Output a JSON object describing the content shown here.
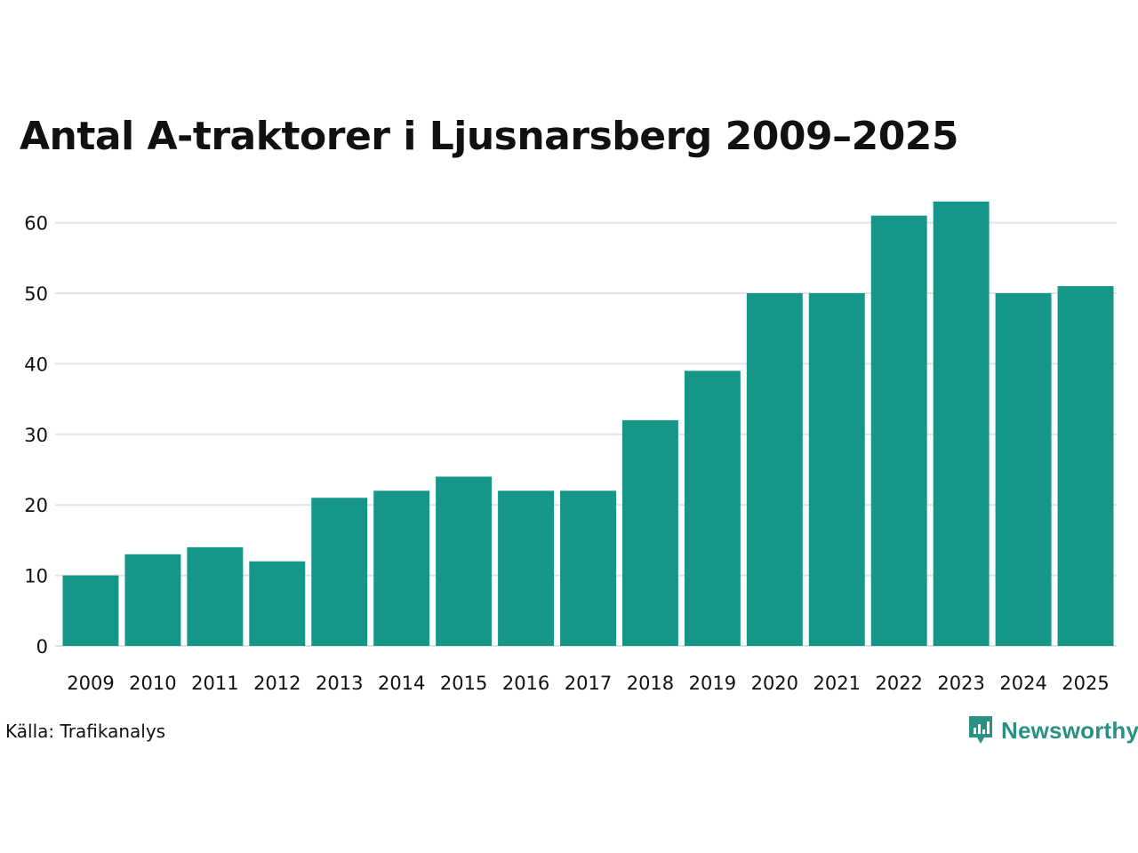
{
  "chart_data": {
    "type": "bar",
    "title": "Antal A-traktorer i Ljusnarsberg 2009–2025",
    "categories": [
      "2009",
      "2010",
      "2011",
      "2012",
      "2013",
      "2014",
      "2015",
      "2016",
      "2017",
      "2018",
      "2019",
      "2020",
      "2021",
      "2022",
      "2023",
      "2024",
      "2025"
    ],
    "values": [
      10,
      13,
      14,
      12,
      21,
      22,
      24,
      22,
      22,
      32,
      39,
      50,
      50,
      61,
      63,
      50,
      51
    ],
    "yticks": [
      0,
      10,
      20,
      30,
      40,
      50,
      60
    ],
    "ylim": [
      0,
      65
    ],
    "xlabel": "",
    "ylabel": "",
    "grid": true,
    "bar_color": "#159688"
  },
  "footer": {
    "source": "Källa: Trafikanalys",
    "brand": "Newsworthy",
    "brand_color": "#2a9184"
  }
}
